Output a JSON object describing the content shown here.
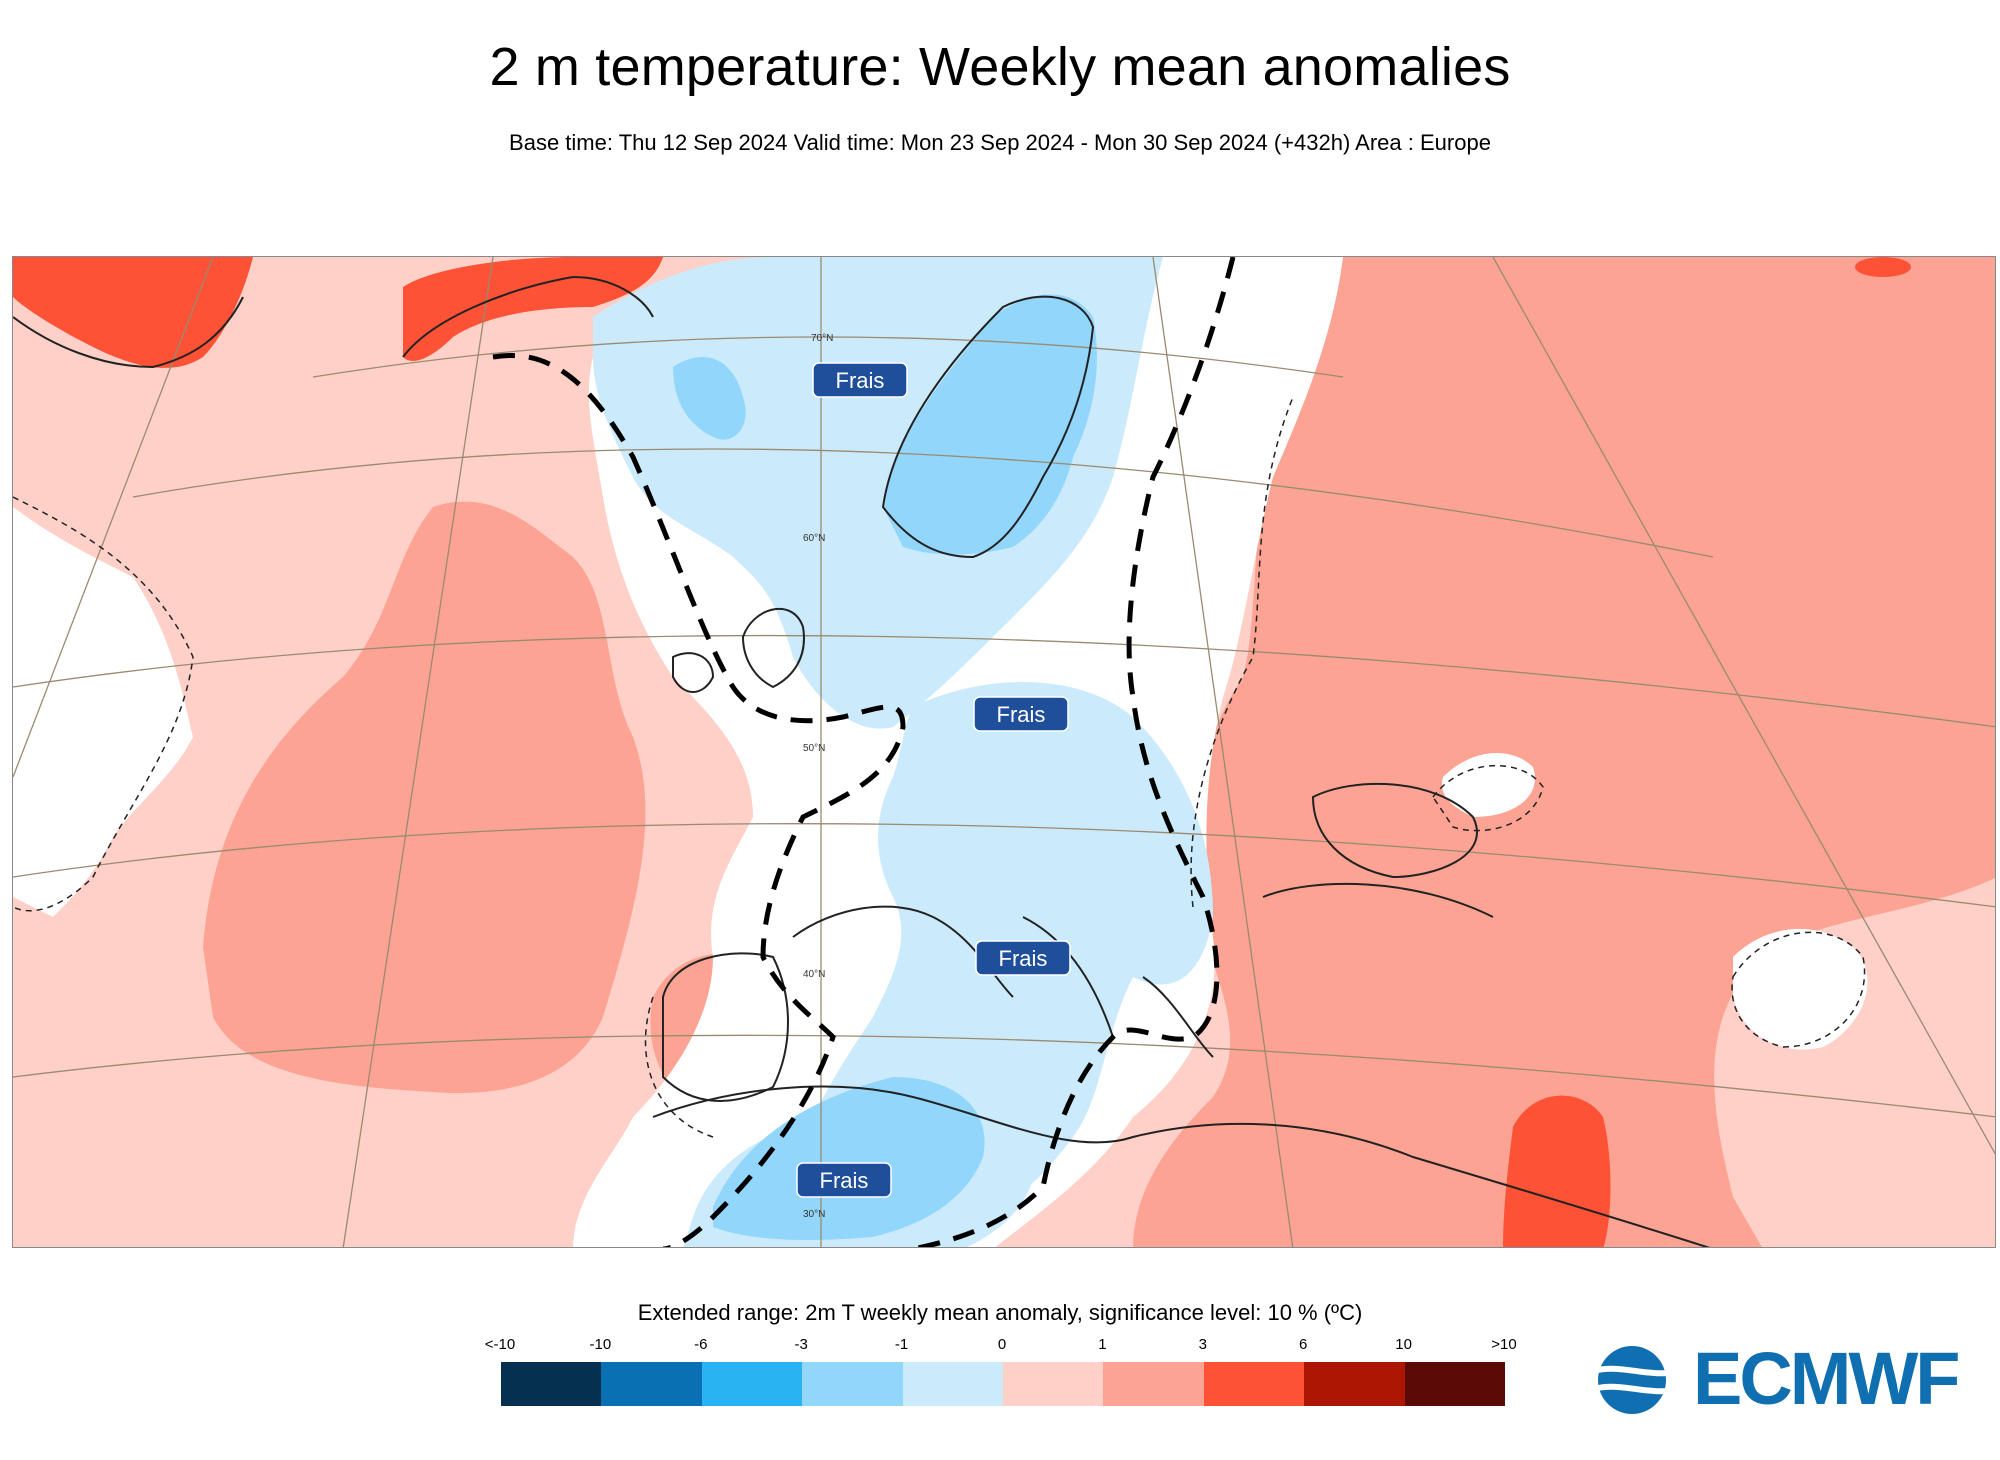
{
  "title": "2 m temperature: Weekly mean anomalies",
  "subtitle": "Base time: Thu 12 Sep 2024 Valid time: Mon 23 Sep 2024 - Mon 30 Sep 2024 (+432h) Area : Europe",
  "map": {
    "lat_labels": [
      "70°N",
      "60°N",
      "50°N",
      "40°N",
      "30°N"
    ],
    "annotations": [
      "Frais",
      "Frais",
      "Frais",
      "Frais"
    ],
    "annotation_color": "#1f4e9a"
  },
  "legend": {
    "title": "Extended range: 2m T weekly mean anomaly, significance level: 10 % (ºC)",
    "ticks": [
      "<-10",
      "-10",
      "-6",
      "-3",
      "-1",
      "0",
      "1",
      "3",
      "6",
      "10",
      ">10"
    ],
    "colors": [
      "#06304f",
      "#0870b3",
      "#2ab3f2",
      "#93d6fb",
      "#cbeafb",
      "#fed0c8",
      "#fca393",
      "#fd5236",
      "#ab1702",
      "#5a0b06"
    ]
  },
  "logo": {
    "text": "ECMWF",
    "color": "#0f6fb0"
  }
}
